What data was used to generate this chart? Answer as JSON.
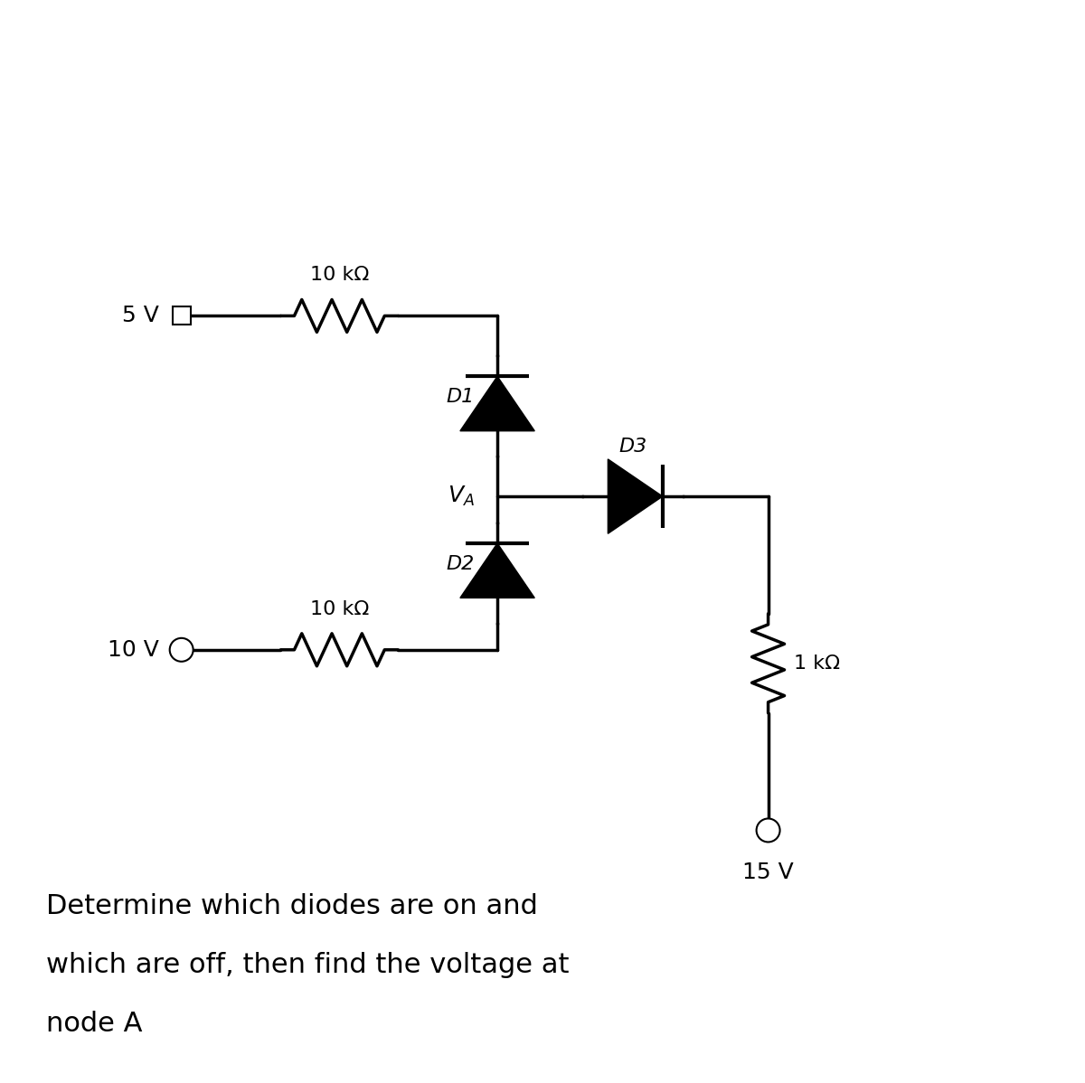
{
  "bg_color": "#ffffff",
  "line_color": "#000000",
  "line_width": 2.5,
  "fig_width": 12.0,
  "fig_height": 11.98,
  "text_color": "#000000",
  "label_5V": "5 V",
  "label_10V": "10 V",
  "label_15V": "15 V",
  "label_R1": "10 kΩ",
  "label_R2": "10 kΩ",
  "label_R3": "1 kΩ",
  "label_D1": "D1",
  "label_D2": "D2",
  "label_D3": "D3",
  "label_VA": "V_A",
  "question": "Determine which diodes are on and\nwhich are off, then find the voltage at\nnode A"
}
